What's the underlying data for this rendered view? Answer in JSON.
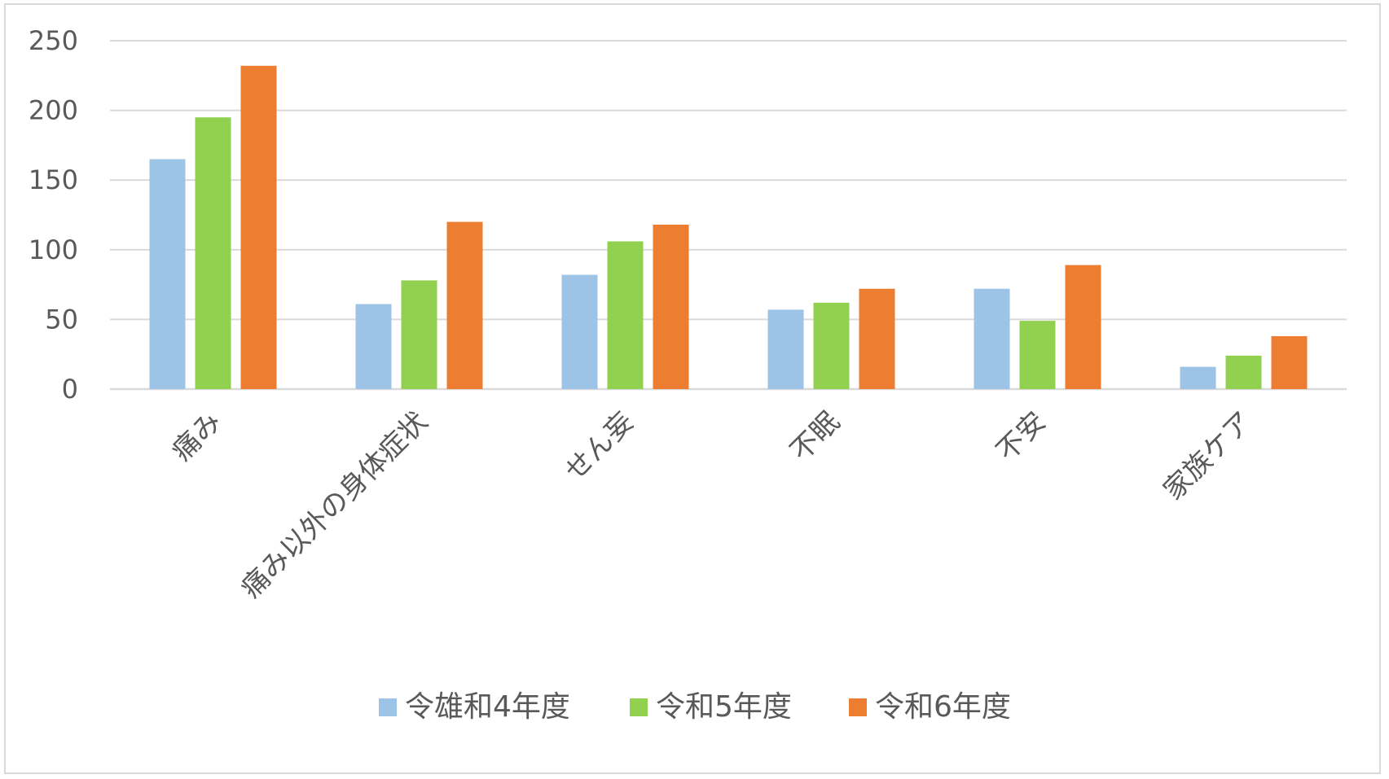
{
  "chart_data": {
    "type": "bar",
    "categories": [
      "痛み",
      "痛み以外の身体症状",
      "せん妄",
      "不眠",
      "不安",
      "家族ケア"
    ],
    "series": [
      {
        "name": "令雄和4年度",
        "color": "#9dc3e6",
        "values": [
          165,
          61,
          82,
          57,
          72,
          16
        ]
      },
      {
        "name": "令和5年度",
        "color": "#92d050",
        "values": [
          195,
          78,
          106,
          62,
          49,
          24
        ]
      },
      {
        "name": "令和6年度",
        "color": "#ed7d31",
        "values": [
          232,
          120,
          118,
          72,
          89,
          38
        ]
      }
    ],
    "yticks": [
      "0",
      "50",
      "100",
      "150",
      "200",
      "250"
    ],
    "ylim": [
      0,
      250
    ],
    "grid": true,
    "legend_position": "bottom",
    "grid_color": "#d9d9d9",
    "text_color": "#595959"
  }
}
